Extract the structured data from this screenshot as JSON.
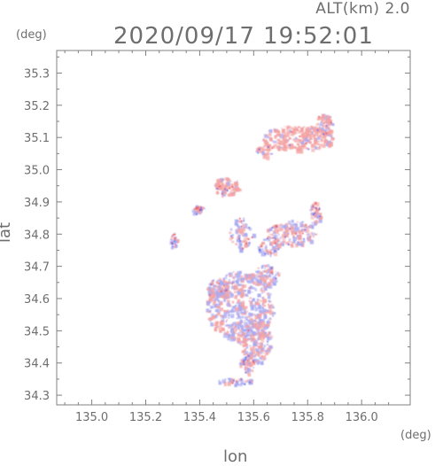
{
  "header": {
    "altitude": "ALT(km) 2.0",
    "timestamp": "2020/09/17 19:52:01"
  },
  "axes": {
    "lat_unit": "(deg)",
    "lon_unit": "(deg)",
    "ylabel": "lat",
    "xlabel": "lon",
    "xticks": [
      "135.0",
      "135.2",
      "135.4",
      "135.6",
      "135.8",
      "136.0"
    ],
    "yticks": [
      "34.3",
      "34.4",
      "34.5",
      "34.6",
      "34.7",
      "34.8",
      "34.9",
      "35.0",
      "35.1",
      "35.2",
      "35.3"
    ]
  },
  "map": {
    "xlim": [
      134.87,
      136.18
    ],
    "ylim": [
      34.27,
      35.37
    ],
    "colors": {
      "positive": "#f4a3a3",
      "negative": "#a9aaf2",
      "frame": "#808080"
    }
  }
}
